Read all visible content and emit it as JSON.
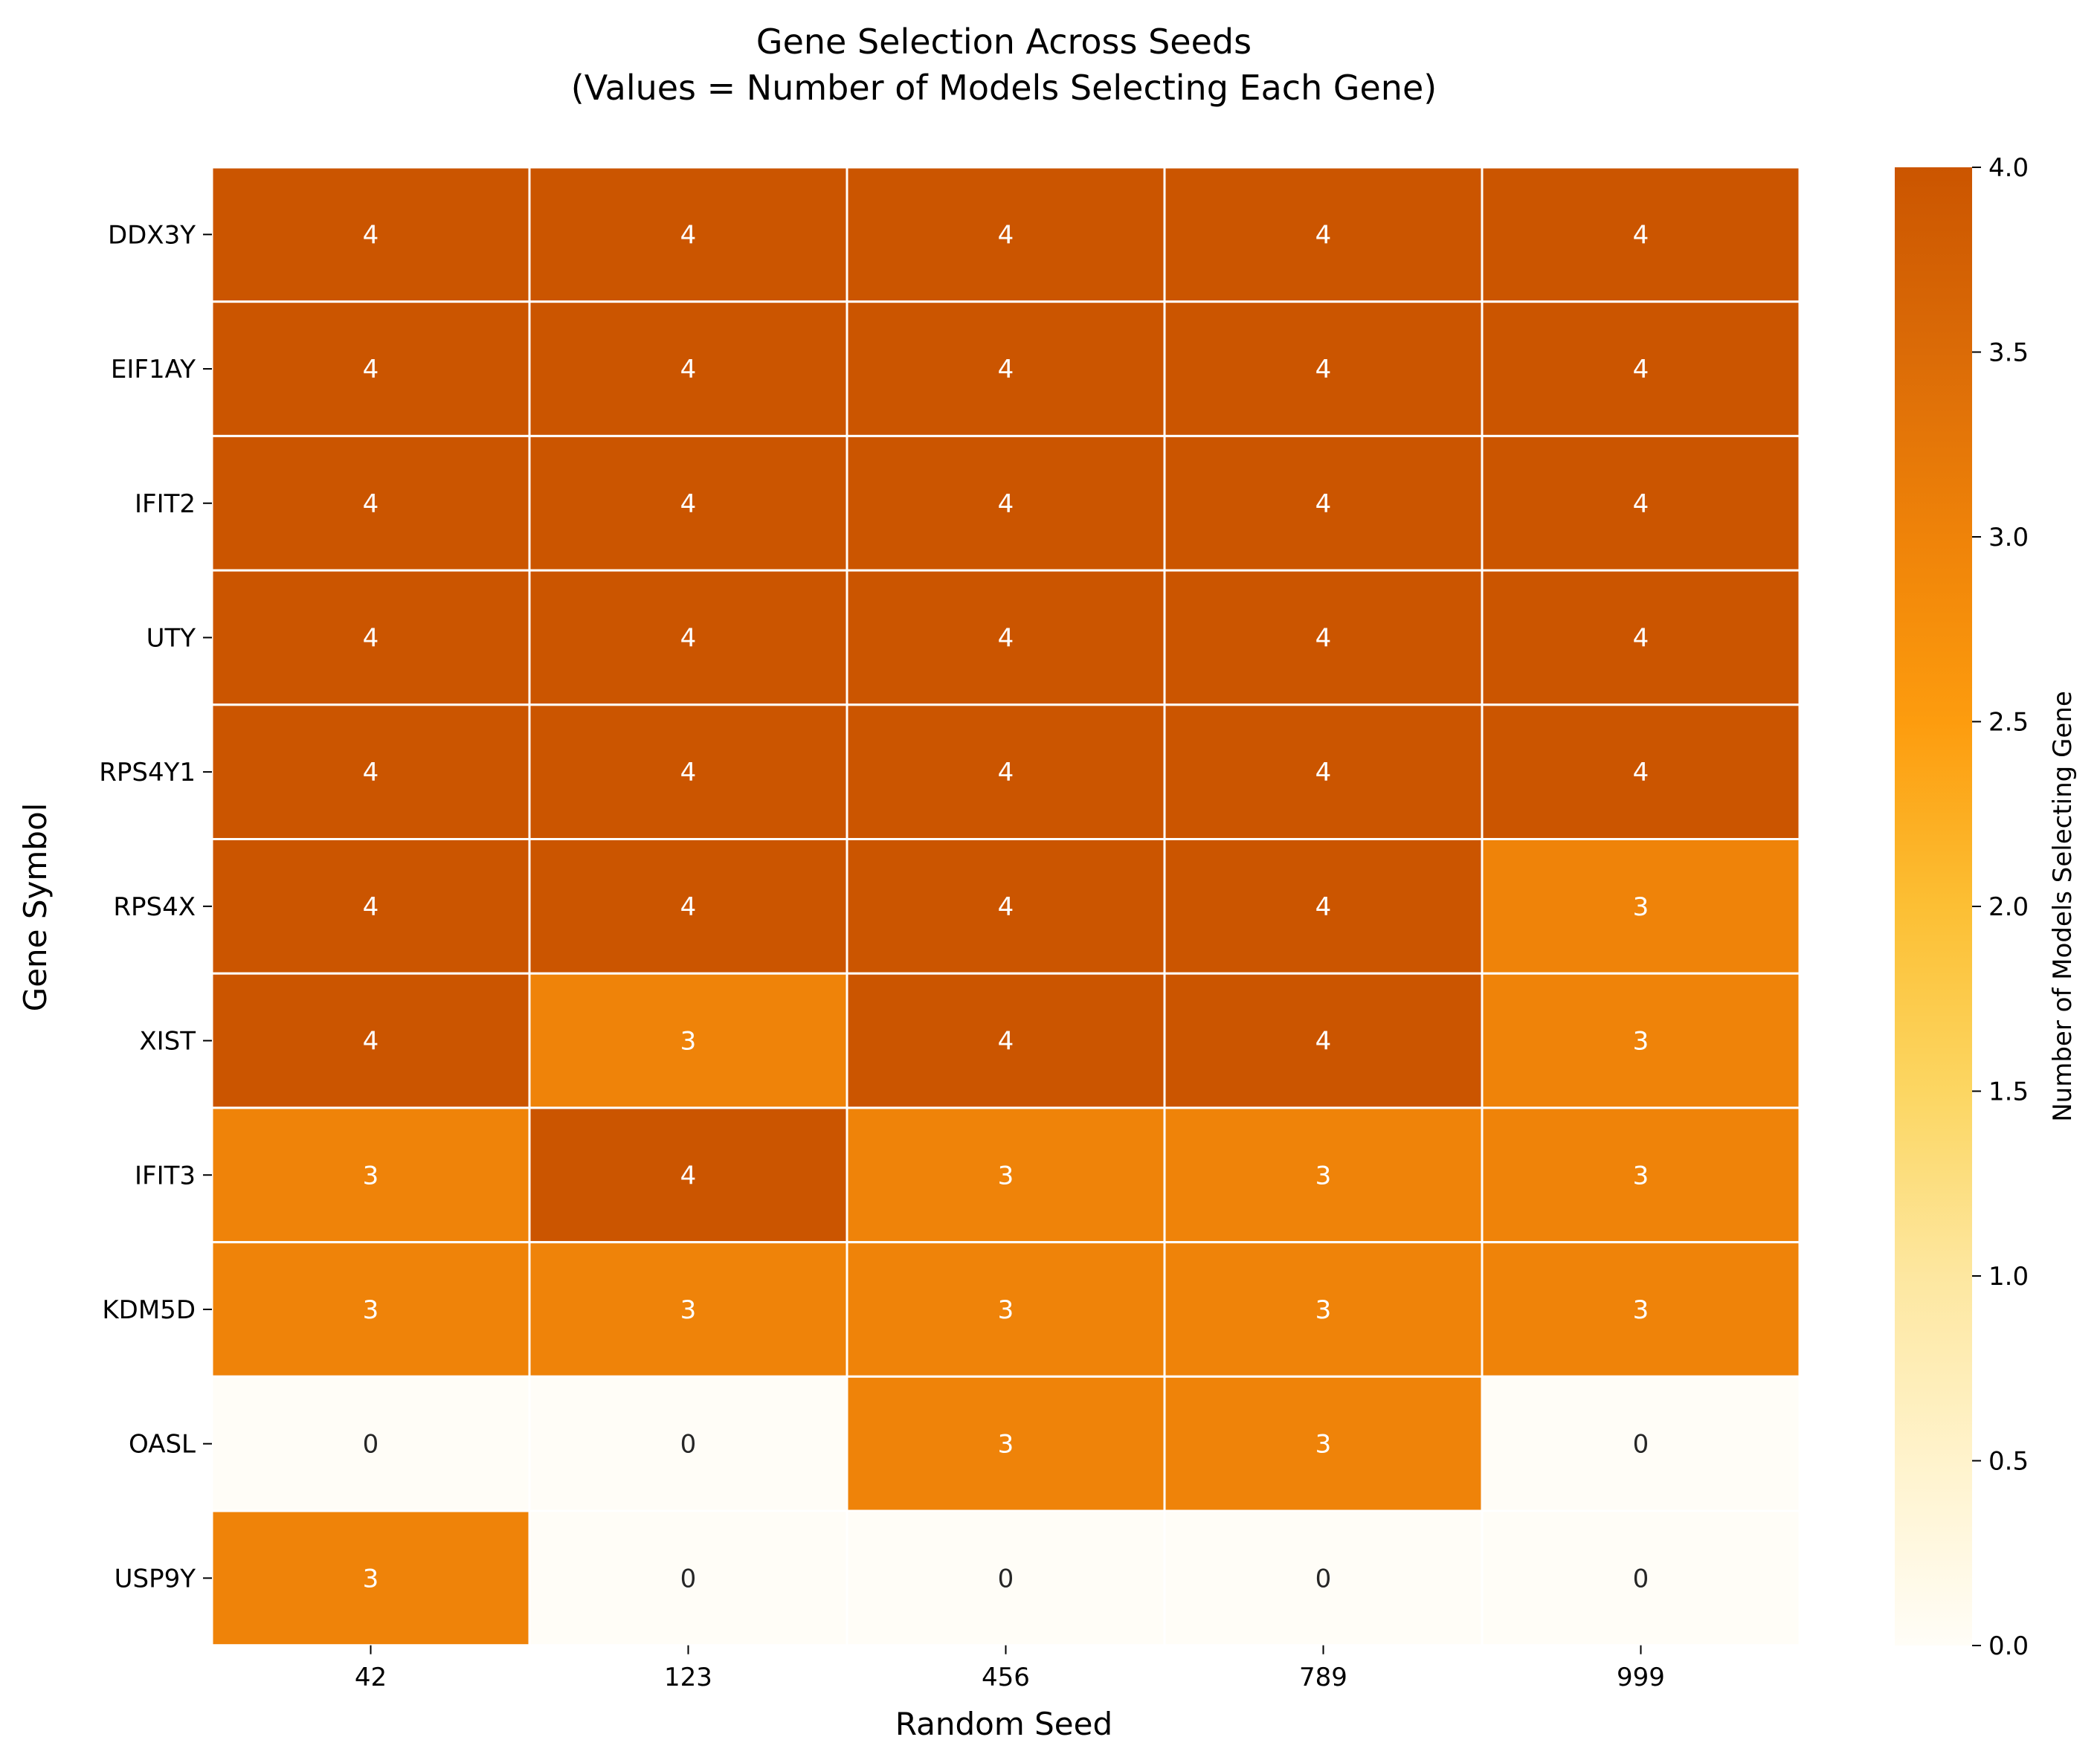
{
  "chart_data": {
    "type": "heatmap",
    "title": "Gene Selection Across Seeds",
    "subtitle": "(Values = Number of Models Selecting Each Gene)",
    "xlabel": "Random Seed",
    "ylabel": "Gene Symbol",
    "x_categories": [
      "42",
      "123",
      "456",
      "789",
      "999"
    ],
    "y_categories": [
      "DDX3Y",
      "EIF1AY",
      "IFIT2",
      "UTY",
      "RPS4Y1",
      "RPS4X",
      "XIST",
      "IFIT3",
      "KDM5D",
      "OASL",
      "USP9Y"
    ],
    "values": [
      [
        4,
        4,
        4,
        4,
        4
      ],
      [
        4,
        4,
        4,
        4,
        4
      ],
      [
        4,
        4,
        4,
        4,
        4
      ],
      [
        4,
        4,
        4,
        4,
        4
      ],
      [
        4,
        4,
        4,
        4,
        4
      ],
      [
        4,
        4,
        4,
        4,
        3
      ],
      [
        4,
        3,
        4,
        4,
        3
      ],
      [
        3,
        4,
        3,
        3,
        3
      ],
      [
        3,
        3,
        3,
        3,
        3
      ],
      [
        0,
        0,
        3,
        3,
        0
      ],
      [
        3,
        0,
        0,
        0,
        0
      ]
    ],
    "colorbar": {
      "label": "Number of Models Selecting Gene",
      "range": [
        0,
        4
      ],
      "ticks": [
        "0.0",
        "0.5",
        "1.0",
        "1.5",
        "2.0",
        "2.5",
        "3.0",
        "3.5",
        "4.0"
      ],
      "colors": [
        "#fffdf7",
        "#fff3cc",
        "#fde7a0",
        "#fcd662",
        "#fcbf34",
        "#fd9c0e",
        "#ef8309",
        "#db6b07",
        "#cb5500"
      ]
    },
    "grid": false
  }
}
